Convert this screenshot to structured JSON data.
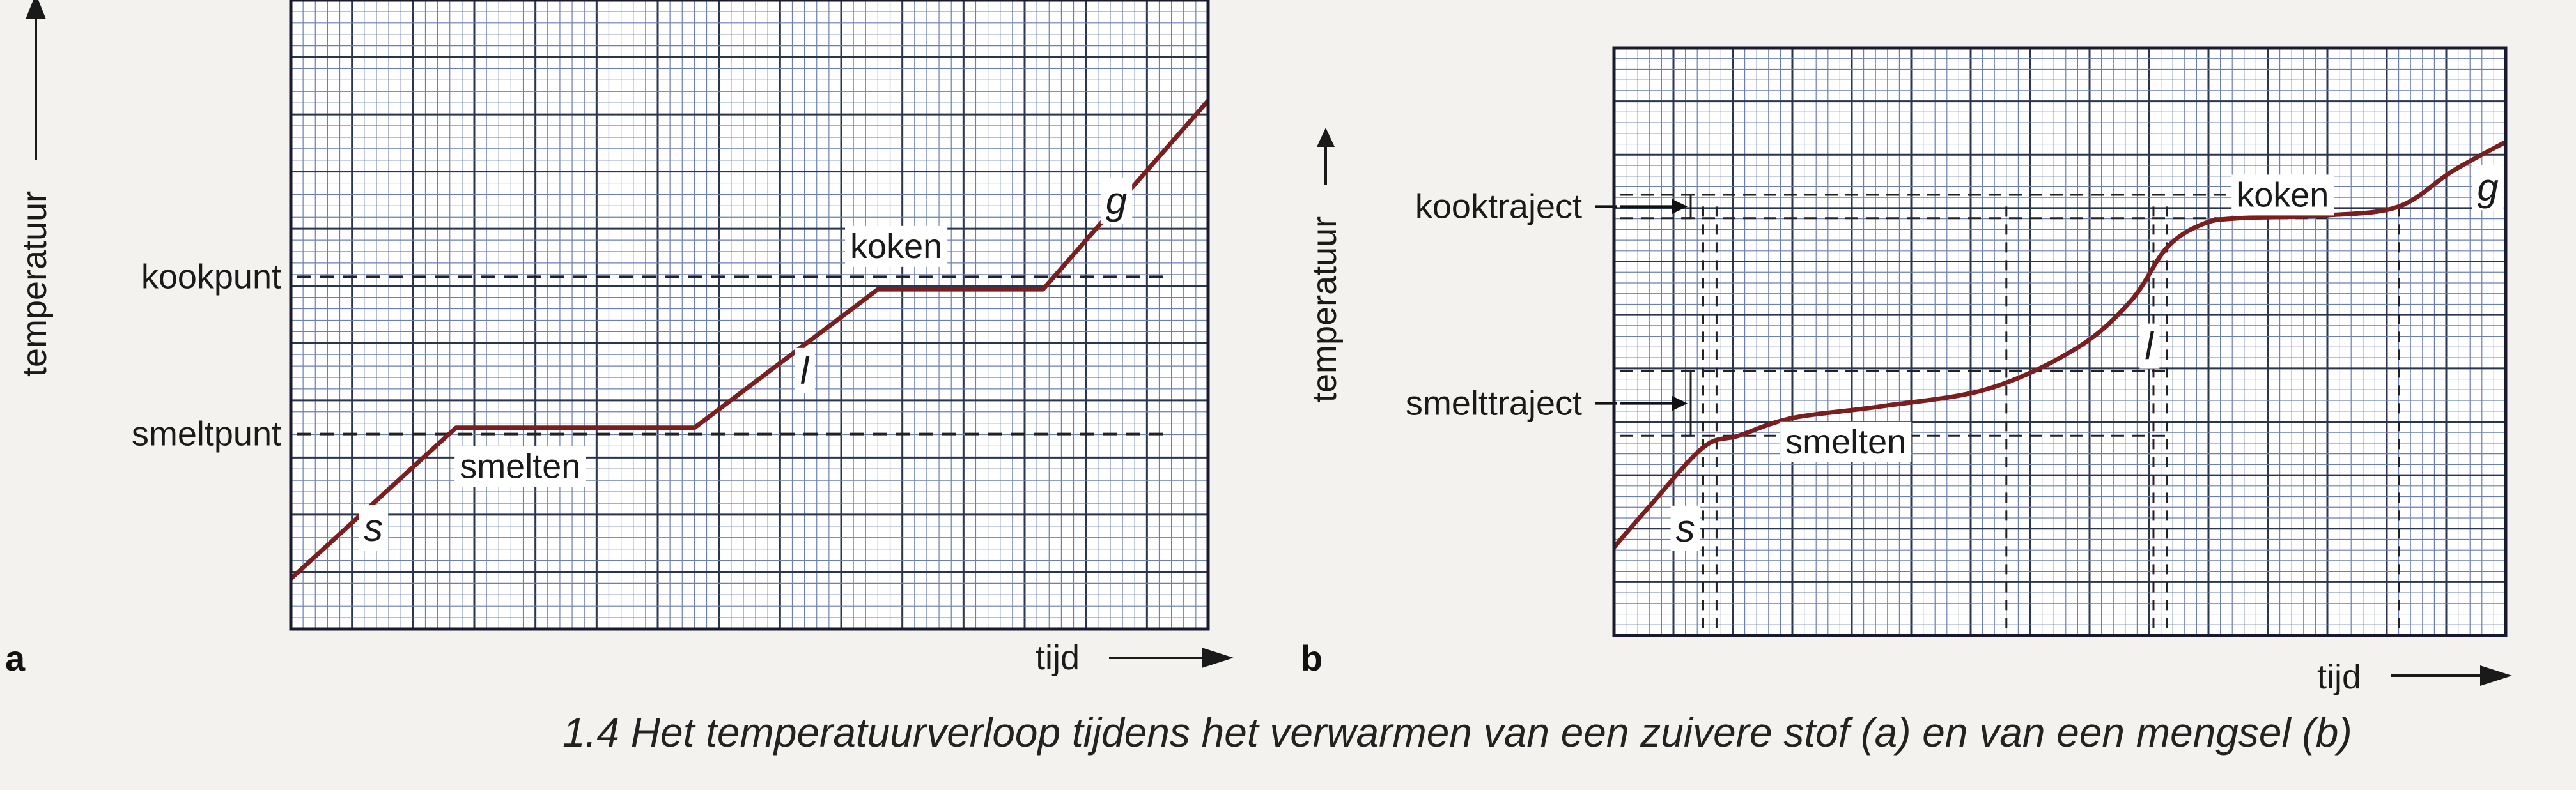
{
  "caption": "1.4 Het temperatuurverloop tijdens het verwarmen van een zuivere stof (a) en van een mengsel (b)",
  "colors": {
    "curve": "#7a1e1e",
    "grid_major": "#2a3550",
    "grid_minor": "#6b7fb0",
    "paper": "#ffffff"
  },
  "chart_data": [
    {
      "type": "line",
      "panel": "a",
      "xlabel": "tijd",
      "ylabel": "temperatuur",
      "xlim": [
        0,
        100
      ],
      "ylim": [
        0,
        100
      ],
      "grid": true,
      "series": [
        {
          "x": [
            0,
            18,
            44,
            64,
            82,
            100
          ],
          "y": [
            8,
            32,
            32,
            54,
            54,
            84
          ]
        }
      ],
      "reference_lines": [
        {
          "label": "kookpunt",
          "y": 56
        },
        {
          "label": "smeltpunt",
          "y": 31
        }
      ],
      "annotations": [
        {
          "text": "s",
          "x": 9,
          "y": 14
        },
        {
          "text": "smelten",
          "x": 25,
          "y": 24
        },
        {
          "text": "l",
          "x": 56,
          "y": 39
        },
        {
          "text": "koken",
          "x": 66,
          "y": 59
        },
        {
          "text": "g",
          "x": 90,
          "y": 66
        }
      ],
      "panel_label": "a"
    },
    {
      "type": "line",
      "panel": "b",
      "xlabel": "tijd",
      "ylabel": "temperatuur",
      "xlim": [
        0,
        100
      ],
      "ylim": [
        0,
        100
      ],
      "grid": true,
      "series": [
        {
          "x": [
            0,
            4,
            10,
            14,
            20,
            30,
            42,
            52,
            58,
            62,
            66,
            70,
            80,
            88,
            94,
            100
          ],
          "y": [
            15,
            22,
            32,
            34,
            37,
            39,
            42,
            49,
            57,
            66,
            70,
            71,
            71.5,
            73,
            79,
            84
          ]
        }
      ],
      "reference_lines": [
        {
          "label": "kooktraject",
          "y_range": [
            71,
            75
          ]
        },
        {
          "label": "smelttraject",
          "y_range": [
            34,
            45
          ]
        }
      ],
      "annotations": [
        {
          "text": "s",
          "x": 8,
          "y": 16
        },
        {
          "text": "smelten",
          "x": 26,
          "y": 31
        },
        {
          "text": "l",
          "x": 60,
          "y": 47
        },
        {
          "text": "koken",
          "x": 75,
          "y": 73
        },
        {
          "text": "g",
          "x": 98,
          "y": 74
        }
      ],
      "panel_label": "b"
    }
  ]
}
